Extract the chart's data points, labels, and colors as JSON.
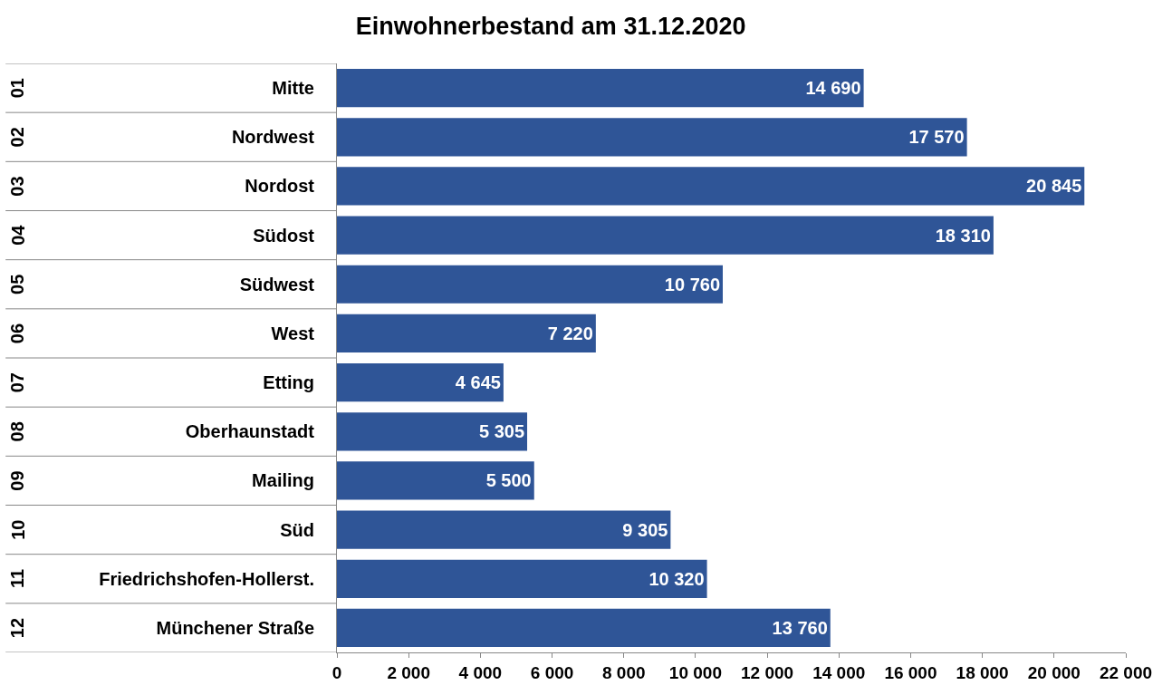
{
  "chart_data": {
    "type": "bar",
    "orientation": "horizontal",
    "title": "Einwohnerbestand am 31.12.2020",
    "categories": [
      "Mitte",
      "Nordwest",
      "Nordost",
      "Südost",
      "Südwest",
      "West",
      "Etting",
      "Oberhaunstadt",
      "Mailing",
      "Süd",
      "Friedrichshofen-Hollerst.",
      "Münchener Straße"
    ],
    "values": [
      14690,
      17570,
      20845,
      18310,
      10760,
      7220,
      4645,
      5305,
      5500,
      9305,
      10320,
      13760
    ],
    "value_labels": [
      "14 690",
      "17 570",
      "20 845",
      "18 310",
      "10 760",
      "7 220",
      "4 645",
      "5 305",
      "5 500",
      "9 305",
      "10 320",
      "13 760"
    ],
    "color": "#2f5597",
    "xlim": [
      0,
      22000
    ],
    "xticks": [
      0,
      {
        "value": 2000,
        "label": "2 000"
      },
      {
        "value": 4000,
        "label": "4 000"
      },
      {
        "value": 6000,
        "label": "6 000"
      },
      {
        "value": 8000,
        "label": "8 000"
      },
      {
        "value": 10000,
        "label": "10 000"
      },
      {
        "value": 12000,
        "label": "12 000"
      },
      {
        "value": 14000,
        "label": "14 000"
      },
      {
        "value": 16000,
        "label": "16 000"
      },
      {
        "value": 18000,
        "label": "18 000"
      },
      {
        "value": 20000,
        "label": "20 000"
      },
      {
        "value": 22000,
        "label": "22 000"
      }
    ],
    "annotations": [
      "01",
      "02",
      "03",
      "04",
      "05",
      "06",
      "07",
      "08",
      "09",
      "10",
      "11",
      "12"
    ],
    "grid": false
  }
}
